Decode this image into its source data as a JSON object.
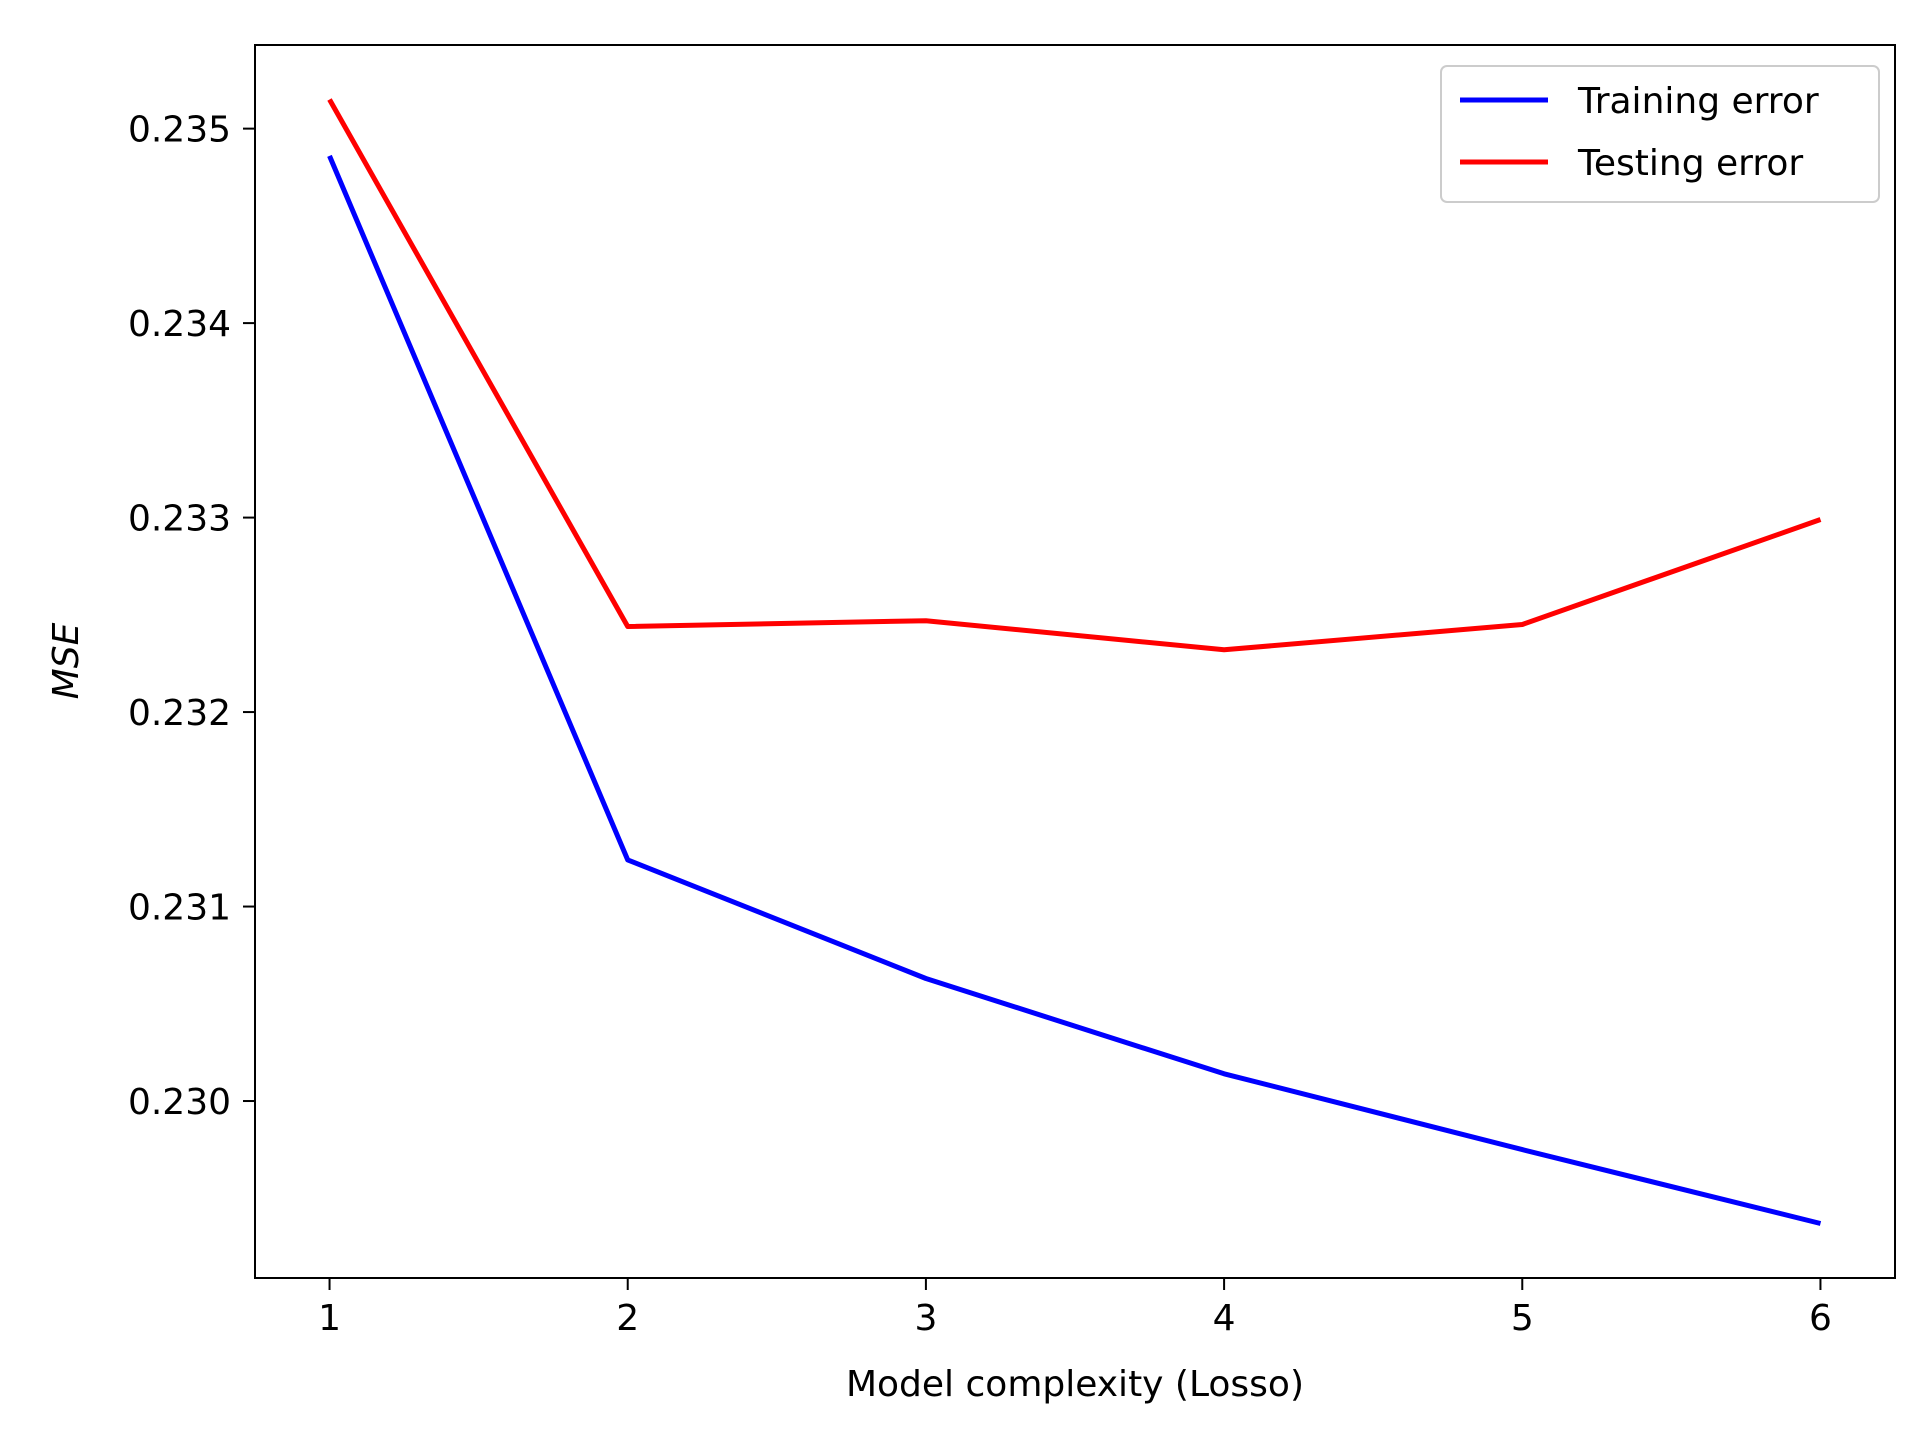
{
  "chart_data": {
    "type": "line",
    "xlabel": "Model complexity (Losso)",
    "ylabel": "MSE",
    "x": [
      1,
      2,
      3,
      4,
      5,
      6
    ],
    "xticks": [
      "1",
      "2",
      "3",
      "4",
      "5",
      "6"
    ],
    "xlim": [
      0.75,
      6.25
    ],
    "yticks": [
      "0.230",
      "0.231",
      "0.232",
      "0.233",
      "0.234",
      "0.235"
    ],
    "ylim": [
      0.22909,
      0.23543
    ],
    "grid": false,
    "legend_position": "upper-right",
    "series": [
      {
        "name": "Training error",
        "color": "#0000ff",
        "values": [
          0.23486,
          0.23124,
          0.23063,
          0.23014,
          0.22975,
          0.22937
        ]
      },
      {
        "name": "Testing error",
        "color": "#ff0000",
        "values": [
          0.23515,
          0.23244,
          0.23247,
          0.23232,
          0.23245,
          0.23299
        ]
      }
    ]
  }
}
